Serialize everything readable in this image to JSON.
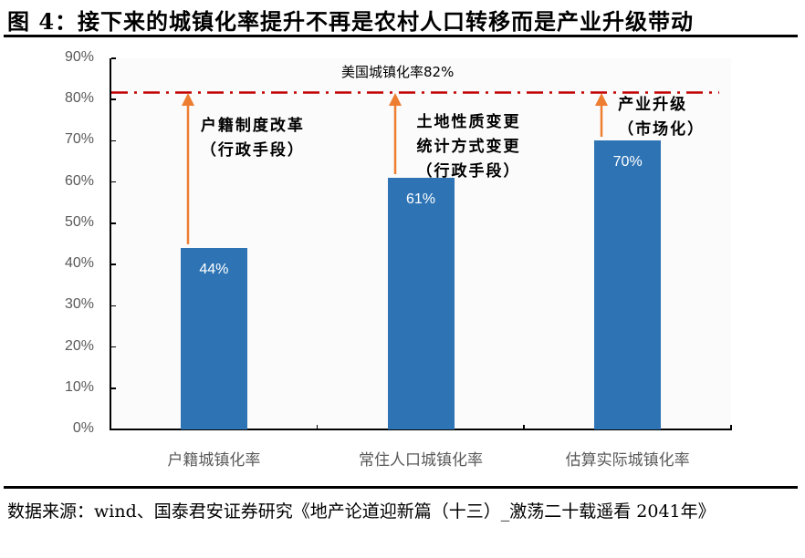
{
  "figure": {
    "title": "图 4：接下来的城镇化率提升不再是农村人口转移而是产业升级带动",
    "source": "数据来源：wind、国泰君安证券研究《地产论道迎新篇（十三）_激荡二十载遥看 2041年》"
  },
  "colors": {
    "bar": "#2e74b5",
    "reference_line": "#c00000",
    "arrow": "#ed7d31",
    "axis_text": "#595959"
  },
  "chart_data": {
    "type": "bar",
    "title": "接下来的城镇化率提升不再是农村人口转移而是产业升级带动",
    "categories": [
      "户籍城镇化率",
      "常住人口城镇化率",
      "估算实际城镇化率"
    ],
    "values": [
      44,
      61,
      70
    ],
    "value_labels": [
      "44%",
      "61%",
      "70%"
    ],
    "unit": "%",
    "xlabel": "",
    "ylabel": "",
    "ylim": [
      0,
      90
    ],
    "yticks": [
      "0%",
      "10%",
      "20%",
      "30%",
      "40%",
      "50%",
      "60%",
      "70%",
      "80%",
      "90%"
    ],
    "grid": false,
    "legend": null,
    "reference_line": {
      "value": 82,
      "label": "美国城镇化率82%",
      "style": "dash-dot",
      "color": "#c00000"
    },
    "annotations": [
      {
        "category": "户籍城镇化率",
        "arrow_from": 44,
        "arrow_to": 82,
        "lines": [
          "户籍制度改革",
          "（行政手段）"
        ]
      },
      {
        "category": "常住人口城镇化率",
        "arrow_from": 61,
        "arrow_to": 82,
        "lines": [
          "土地性质变更",
          "统计方式变更",
          "（行政手段）"
        ]
      },
      {
        "category": "估算实际城镇化率",
        "arrow_from": 70,
        "arrow_to": 82,
        "lines": [
          "产业升级",
          "（市场化）"
        ]
      }
    ]
  }
}
